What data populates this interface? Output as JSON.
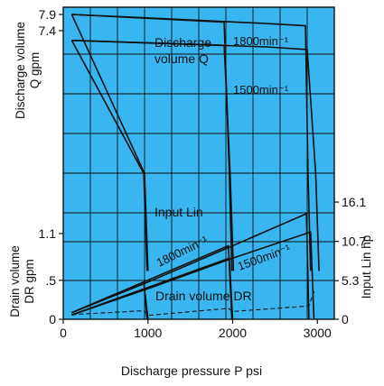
{
  "chart_data": {
    "type": "line",
    "xlabel": "Discharge pressure P psi",
    "xlim": [
      0,
      3200
    ],
    "x_ticks": [
      "0",
      "1000",
      "2000",
      "3000"
    ],
    "x_tick_values": [
      0,
      1000,
      2000,
      3000
    ],
    "left_axis_top": {
      "label_lines": [
        "Discharge volume",
        "Q  gpm"
      ],
      "ticks": [
        "7.9",
        "7.4"
      ],
      "tick_values": [
        7.9,
        7.4
      ]
    },
    "left_axis_bottom": {
      "label_lines": [
        "Drain volume",
        "DR  gpm"
      ],
      "ticks": [
        "1.1",
        ".5",
        "0"
      ],
      "tick_values": [
        1.1,
        0.5,
        0
      ]
    },
    "right_axis": {
      "label": "Input Lin hp",
      "ticks": [
        "16.1",
        "10.7",
        "5.3",
        "0"
      ],
      "tick_values": [
        16.1,
        10.7,
        5.3,
        0
      ]
    },
    "annotations": {
      "discharge_line1": "Discharge",
      "discharge_line2": "volume Q",
      "speed_1800_top": "1800min⁻¹",
      "speed_1500_top": "1500min⁻¹",
      "input": "Input Lin",
      "speed_1800_bottom": "1800min⁻¹",
      "speed_1500_bottom": "1500min⁻¹",
      "drain": "Drain volume DR"
    },
    "colors": {
      "background": "#39b5ef",
      "grid": "#111111",
      "line": "#111111"
    },
    "grid": true,
    "series": [
      {
        "name": "Discharge volume Q 1800min⁻¹",
        "axis": "discharge",
        "curves": [
          {
            "x": [
              100,
              2400,
              2860,
              2890,
              2920
            ],
            "y": [
              7.9,
              7.62,
              7.55,
              3.0,
              0
            ]
          },
          {
            "x": [
              100,
              1900,
              1960,
              1990
            ],
            "y": [
              7.9,
              7.66,
              3.0,
              0
            ]
          },
          {
            "x": [
              100,
              960,
              1000
            ],
            "y": [
              7.9,
              3.0,
              0
            ]
          }
        ]
      },
      {
        "name": "Discharge volume Q 1500min⁻¹",
        "axis": "discharge",
        "curves": [
          {
            "x": [
              100,
              2400,
              2880,
              2980,
              3020
            ],
            "y": [
              7.1,
              6.9,
              6.82,
              3.0,
              0
            ]
          },
          {
            "x": [
              100,
              1900,
              1970,
              2010
            ],
            "y": [
              7.1,
              6.95,
              3.0,
              0
            ]
          },
          {
            "x": [
              100,
              950,
              990
            ],
            "y": [
              7.1,
              3.0,
              0
            ]
          }
        ]
      },
      {
        "name": "Input Lin 1800min⁻¹",
        "axis": "input",
        "curves": [
          {
            "x": [
              100,
              1000,
              2000,
              2870,
              2900
            ],
            "y": [
              0.9,
              5.1,
              10.1,
              14.5,
              0
            ]
          },
          {
            "x": [
              100,
              1950,
              1990
            ],
            "y": [
              0.9,
              10.1,
              0
            ]
          },
          {
            "x": [
              100,
              950,
              990
            ],
            "y": [
              0.9,
              5.1,
              0
            ]
          }
        ]
      },
      {
        "name": "Input Lin 1500min⁻¹",
        "axis": "input",
        "curves": [
          {
            "x": [
              100,
              1000,
              2000,
              2920,
              2960
            ],
            "y": [
              0.6,
              4.2,
              8.4,
              12.0,
              0
            ]
          },
          {
            "x": [
              100,
              1960,
              2000
            ],
            "y": [
              0.6,
              8.4,
              0
            ]
          },
          {
            "x": [
              100,
              960,
              1000
            ],
            "y": [
              0.6,
              4.2,
              0
            ]
          }
        ]
      },
      {
        "name": "Drain volume DR",
        "axis": "drain",
        "dashed": true,
        "curves": [
          {
            "x": [
              100,
              950,
              1000,
              1950,
              2000,
              2900,
              2960
            ],
            "y": [
              0.06,
              0.11,
              0.05,
              0.14,
              0.1,
              0.17,
              0.36
            ]
          }
        ]
      }
    ]
  }
}
